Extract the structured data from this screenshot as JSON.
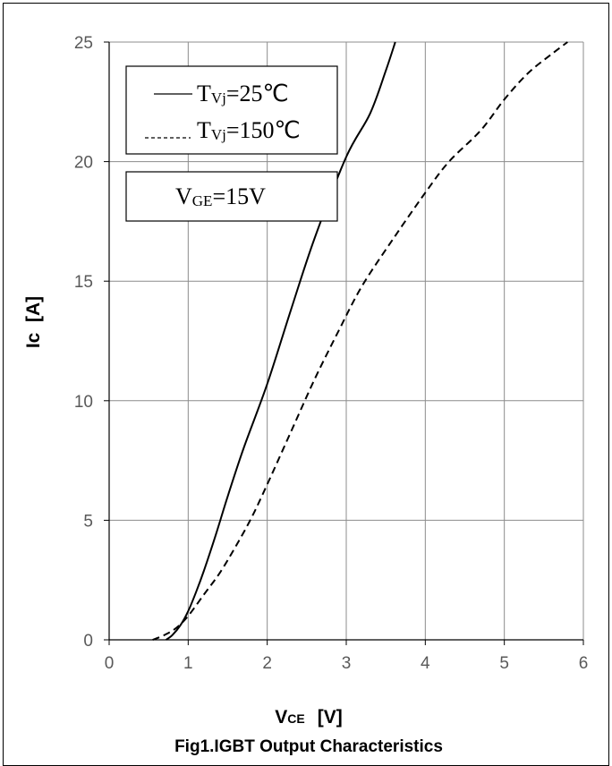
{
  "chart_data": {
    "type": "line",
    "title": "Fig1.IGBT Output Characteristics",
    "xlabel": {
      "main": "V",
      "sub": "CE",
      "unit": "[V]"
    },
    "ylabel": "Ic  [A]",
    "xlim": [
      0,
      6
    ],
    "ylim": [
      0,
      25
    ],
    "xticks": [
      "0",
      "1",
      "2",
      "3",
      "4",
      "5",
      "6"
    ],
    "yticks": [
      "0",
      "5",
      "10",
      "15",
      "20",
      "25"
    ],
    "grid": true,
    "legend_position": "top-left",
    "series": [
      {
        "name": "Tvj=25℃",
        "name_main": "T",
        "name_sub": "Vj",
        "name_rest": "=25℃",
        "style": "solid",
        "x": [
          0.72,
          0.8,
          0.9,
          1.0,
          1.1,
          1.2,
          1.35,
          1.5,
          1.7,
          2.0,
          2.3,
          2.6,
          3.0,
          3.3,
          3.5,
          3.62
        ],
        "y": [
          0.0,
          0.2,
          0.6,
          1.2,
          2.0,
          2.9,
          4.4,
          6.0,
          8.0,
          10.7,
          13.8,
          16.8,
          20.2,
          22.0,
          23.8,
          25.0
        ]
      },
      {
        "name": "Tvj=150℃",
        "name_main": "T",
        "name_sub": "Vj",
        "name_rest": "=150℃",
        "style": "dashed",
        "x": [
          0.55,
          0.7,
          0.85,
          1.0,
          1.2,
          1.4,
          1.6,
          1.8,
          2.0,
          2.3,
          2.6,
          2.9,
          3.2,
          3.6,
          4.0,
          4.3,
          4.7,
          5.0,
          5.3,
          5.6,
          5.8
        ],
        "y": [
          0.0,
          0.2,
          0.5,
          1.0,
          1.9,
          2.8,
          3.9,
          5.1,
          6.5,
          8.7,
          10.9,
          12.9,
          14.8,
          16.8,
          18.7,
          20.0,
          21.3,
          22.6,
          23.7,
          24.5,
          25.0
        ]
      }
    ],
    "annotation": {
      "main": "V",
      "sub": "GE",
      "rest": "=15V"
    }
  }
}
